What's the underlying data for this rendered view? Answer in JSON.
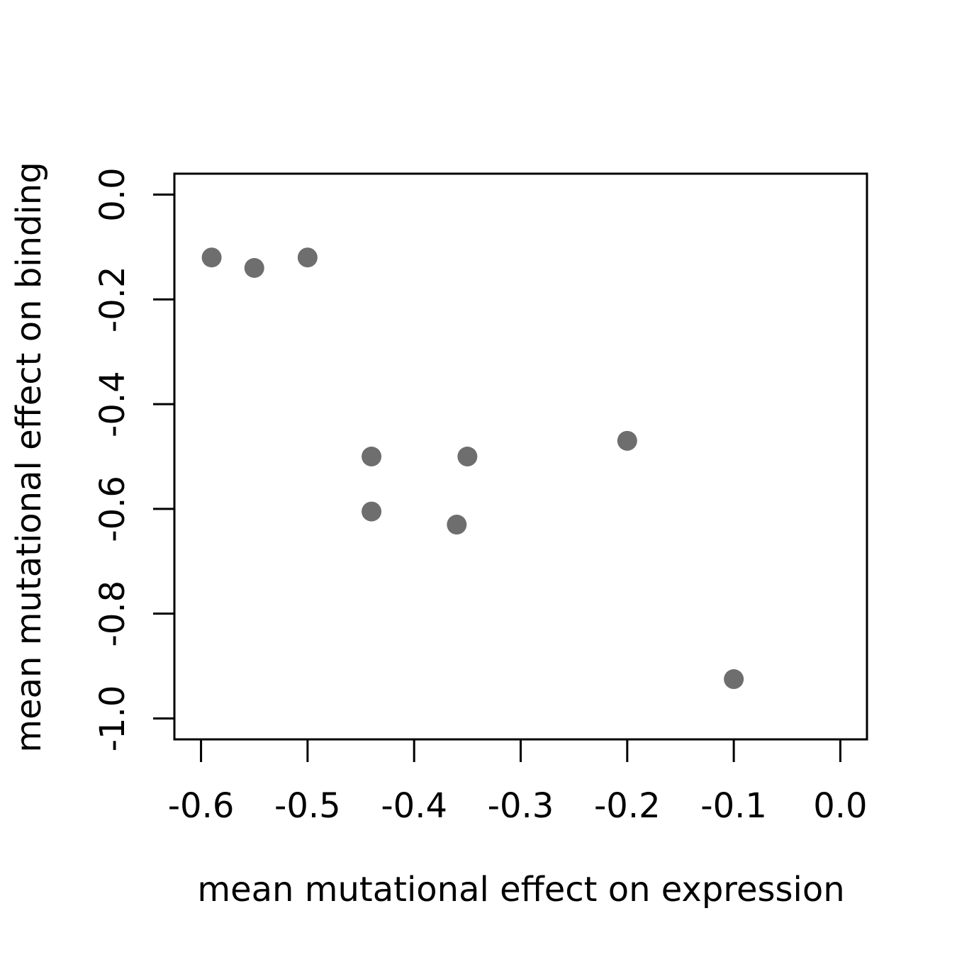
{
  "chart_data": {
    "type": "scatter",
    "xlabel": "mean mutational effect on expression",
    "ylabel": "mean mutational effect on binding",
    "xlim": [
      -0.625,
      0.025
    ],
    "ylim": [
      -1.04,
      0.04
    ],
    "xticks": [
      -0.6,
      -0.5,
      -0.4,
      -0.3,
      -0.2,
      -0.1,
      0.0
    ],
    "xtick_labels": [
      "-0.6",
      "-0.5",
      "-0.4",
      "-0.3",
      "-0.2",
      "-0.1",
      "0.0"
    ],
    "yticks": [
      0.0,
      -0.2,
      -0.4,
      -0.6,
      -0.8,
      -1.0
    ],
    "ytick_labels": [
      "0.0",
      "-0.2",
      "-0.4",
      "-0.6",
      "-0.8",
      "-1.0"
    ],
    "grid": false,
    "point_color": "#6e6e6e",
    "points": [
      {
        "x": -0.59,
        "y": -0.12
      },
      {
        "x": -0.55,
        "y": -0.14
      },
      {
        "x": -0.5,
        "y": -0.12
      },
      {
        "x": -0.44,
        "y": -0.5
      },
      {
        "x": -0.35,
        "y": -0.5
      },
      {
        "x": -0.2,
        "y": -0.47
      },
      {
        "x": -0.44,
        "y": -0.605
      },
      {
        "x": -0.36,
        "y": -0.63
      },
      {
        "x": -0.1,
        "y": -0.925
      }
    ]
  }
}
